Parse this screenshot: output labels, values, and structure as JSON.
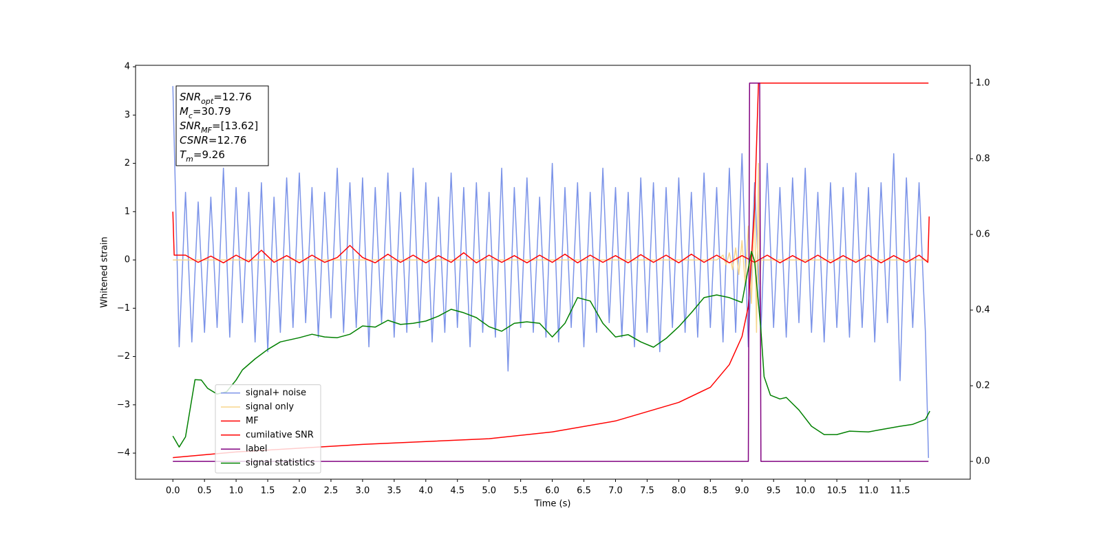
{
  "chart_data": {
    "type": "line",
    "xlabel": "Time (s)",
    "ylabel": "Whitened strain",
    "xlim": [
      -0.59,
      12.61
    ],
    "ylim": [
      -4.54,
      4.03
    ],
    "y2lim": [
      -0.047,
      1.047
    ],
    "xticks": [
      {
        "value": 0,
        "label": "0.0"
      },
      0.5,
      {
        "value": 1,
        "label": "1.0"
      },
      1.5,
      {
        "value": 2,
        "label": "2.0"
      },
      2.5,
      {
        "value": 3,
        "label": "3.0"
      },
      3.5,
      {
        "value": 4,
        "label": "4.0"
      },
      4.5,
      {
        "value": 5,
        "label": "5.0"
      },
      5.5,
      {
        "value": 6,
        "label": "6.0"
      },
      6.5,
      {
        "value": 7,
        "label": "7.0"
      },
      7.5,
      {
        "value": 8,
        "label": "8.0"
      },
      8.5,
      {
        "value": 9,
        "label": "9.0"
      },
      9.5,
      {
        "value": 10,
        "label": "10.0"
      },
      10.5,
      {
        "value": 11,
        "label": "11.0"
      },
      11.5
    ],
    "yticks": [
      {
        "value": -4,
        "label": "−4"
      },
      {
        "value": -3,
        "label": "−3"
      },
      {
        "value": -2,
        "label": "−2"
      },
      {
        "value": -1,
        "label": "−1"
      },
      0,
      1,
      2,
      3,
      4
    ],
    "y2ticks": [
      {
        "value": 0,
        "label": "0.0"
      },
      0.2,
      0.4,
      0.6,
      0.8,
      {
        "value": 1,
        "label": "1.0"
      }
    ],
    "legend": "lower left",
    "annotation": [
      {
        "main": "SNR",
        "sub": "opt",
        "rest": "=12.76"
      },
      {
        "main": "M",
        "sub": "c",
        "rest": "=30.79"
      },
      {
        "main": "SNR",
        "sub": "MF",
        "rest": "=[13.62]"
      },
      {
        "main": "CSNR",
        "rest": "=12.76"
      },
      {
        "main": "T",
        "sub": "m",
        "rest": "=9.26"
      }
    ],
    "series": [
      {
        "name": "signal+ noise",
        "color": "#7b93e8",
        "x": [
          0,
          0.1,
          0.2,
          0.3,
          0.4,
          0.5,
          0.6,
          0.7,
          0.8,
          0.9,
          1,
          1.1,
          1.2,
          1.3,
          1.4,
          1.5,
          1.6,
          1.7,
          1.8,
          1.9,
          2,
          2.1,
          2.2,
          2.3,
          2.4,
          2.5,
          2.6,
          2.7,
          2.8,
          2.9,
          3,
          3.1,
          3.2,
          3.3,
          3.4,
          3.5,
          3.6,
          3.7,
          3.8,
          3.9,
          4,
          4.1,
          4.2,
          4.3,
          4.4,
          4.5,
          4.6,
          4.7,
          4.8,
          4.9,
          5,
          5.1,
          5.2,
          5.3,
          5.4,
          5.5,
          5.6,
          5.7,
          5.8,
          5.9,
          6,
          6.1,
          6.2,
          6.3,
          6.4,
          6.5,
          6.6,
          6.7,
          6.8,
          6.9,
          7,
          7.1,
          7.2,
          7.3,
          7.4,
          7.5,
          7.6,
          7.7,
          7.8,
          7.9,
          8,
          8.1,
          8.2,
          8.3,
          8.4,
          8.5,
          8.6,
          8.7,
          8.8,
          8.9,
          9,
          9.1,
          9.2,
          9.3,
          9.4,
          9.5,
          9.6,
          9.7,
          9.8,
          9.9,
          10,
          10.1,
          10.2,
          10.3,
          10.4,
          10.5,
          10.6,
          10.7,
          10.8,
          10.9,
          11,
          11.1,
          11.2,
          11.3,
          11.4,
          11.5,
          11.6,
          11.7,
          11.8,
          11.9,
          11.95
        ],
        "values": [
          3.6,
          -1.8,
          1.4,
          -1.7,
          1.2,
          -1.5,
          1.3,
          -1.4,
          1.9,
          -1.6,
          1.5,
          -1.3,
          1.4,
          -1.7,
          1.6,
          -1.9,
          1.3,
          -1.5,
          1.7,
          -1.4,
          1.8,
          -1.3,
          1.5,
          -1.6,
          1.4,
          -1.2,
          1.9,
          -1.5,
          1.6,
          -1.4,
          1.7,
          -1.8,
          1.5,
          -1.3,
          1.8,
          -1.6,
          1.4,
          -1.5,
          1.9,
          -1.4,
          1.6,
          -1.7,
          1.3,
          -1.5,
          1.8,
          -1.4,
          1.5,
          -1.8,
          1.6,
          -1.5,
          1.4,
          -1.6,
          1.9,
          -2.3,
          1.5,
          -1.4,
          1.7,
          -1.5,
          1.3,
          -1.6,
          2.0,
          -1.7,
          1.5,
          -1.4,
          1.6,
          -1.8,
          1.4,
          -1.5,
          1.9,
          -1.3,
          1.5,
          -1.6,
          1.4,
          -1.8,
          1.7,
          -1.5,
          1.6,
          -1.9,
          1.5,
          -1.4,
          1.7,
          -1.5,
          1.4,
          -1.6,
          1.8,
          -1.4,
          1.5,
          -1.7,
          1.9,
          -1.5,
          2.2,
          -1.8,
          1.6,
          -1.5,
          2.0,
          -1.4,
          1.5,
          -1.6,
          1.7,
          -1.3,
          1.9,
          -1.5,
          1.4,
          -1.7,
          1.6,
          -1.4,
          1.5,
          -1.6,
          1.8,
          -1.4,
          1.5,
          -1.7,
          1.6,
          -1.3,
          2.2,
          -2.5,
          1.7,
          -1.4,
          1.6,
          -1.5,
          -4.1
        ]
      },
      {
        "name": "signal only",
        "color": "#f7d58a",
        "x": [
          0,
          8.6,
          8.7,
          8.75,
          8.8,
          8.85,
          8.9,
          8.95,
          9,
          9.05,
          9.1,
          9.15,
          9.2,
          9.23,
          9.26,
          9.28,
          9.3,
          11.95
        ],
        "values": [
          0,
          0,
          0.1,
          -0.1,
          0.15,
          -0.2,
          0.25,
          -0.3,
          0.4,
          -0.5,
          0.7,
          -0.9,
          1.2,
          -1.5,
          2.0,
          -0.5,
          0,
          0
        ]
      },
      {
        "name": "MF",
        "color": "#ff0000",
        "x": [
          0,
          0.02,
          0.2,
          0.4,
          0.6,
          0.8,
          1,
          1.2,
          1.4,
          1.6,
          1.8,
          2,
          2.2,
          2.4,
          2.6,
          2.8,
          3,
          3.2,
          3.4,
          3.6,
          3.8,
          4,
          4.2,
          4.4,
          4.6,
          4.8,
          5,
          5.2,
          5.4,
          5.6,
          5.8,
          6,
          6.2,
          6.4,
          6.6,
          6.8,
          7,
          7.2,
          7.4,
          7.6,
          7.8,
          8,
          8.2,
          8.4,
          8.6,
          8.8,
          9,
          9.2,
          9.4,
          9.6,
          9.8,
          10,
          10.2,
          10.4,
          10.6,
          10.8,
          11,
          11.2,
          11.4,
          11.6,
          11.8,
          11.94,
          11.96
        ],
        "values": [
          1.0,
          0.1,
          0.1,
          -0.05,
          0.08,
          -0.06,
          0.1,
          -0.04,
          0.2,
          -0.05,
          0.09,
          -0.06,
          0.1,
          -0.05,
          0.05,
          0.3,
          0.05,
          -0.06,
          0.12,
          -0.05,
          0.1,
          -0.06,
          0.09,
          -0.05,
          0.15,
          -0.06,
          0.1,
          -0.05,
          0.09,
          -0.06,
          0.1,
          -0.05,
          0.12,
          -0.06,
          0.1,
          -0.05,
          0.09,
          -0.06,
          0.11,
          -0.05,
          0.1,
          -0.06,
          0.12,
          -0.05,
          0.1,
          -0.06,
          0.09,
          -0.05,
          0.1,
          -0.06,
          0.09,
          -0.05,
          0.1,
          -0.06,
          0.09,
          -0.05,
          0.1,
          -0.06,
          0.09,
          -0.05,
          0.1,
          -0.05,
          0.9
        ]
      },
      {
        "name": "cumilative SNR",
        "color": "#ff0000",
        "axis": "y2",
        "x": [
          0,
          1,
          3,
          5,
          6,
          7,
          8,
          8.5,
          8.8,
          9,
          9.1,
          9.2,
          9.26,
          11.95
        ],
        "values": [
          0.01,
          0.025,
          0.045,
          0.06,
          0.078,
          0.107,
          0.156,
          0.196,
          0.256,
          0.33,
          0.41,
          0.67,
          1.0,
          1.0
        ]
      },
      {
        "name": "label",
        "color": "#800080",
        "axis": "y2",
        "x": [
          0,
          9.1,
          9.12,
          9.28,
          9.3,
          11.95
        ],
        "values": [
          0,
          0,
          1,
          1,
          0,
          0
        ]
      },
      {
        "name": "signal statistics",
        "color": "#008000",
        "axis": "y2",
        "x": [
          0,
          0.1,
          0.2,
          0.35,
          0.45,
          0.55,
          0.7,
          0.85,
          1,
          1.1,
          1.3,
          1.5,
          1.7,
          2,
          2.2,
          2.4,
          2.6,
          2.8,
          3,
          3.2,
          3.4,
          3.6,
          3.8,
          4,
          4.2,
          4.4,
          4.6,
          4.8,
          5,
          5.2,
          5.4,
          5.6,
          5.8,
          6,
          6.2,
          6.4,
          6.6,
          6.8,
          7,
          7.2,
          7.4,
          7.6,
          7.8,
          8,
          8.2,
          8.4,
          8.6,
          8.8,
          9,
          9.15,
          9.2,
          9.3,
          9.35,
          9.45,
          9.6,
          9.7,
          9.9,
          10.1,
          10.3,
          10.5,
          10.7,
          11,
          11.2,
          11.5,
          11.7,
          11.9,
          11.97
        ],
        "values": [
          0.067,
          0.038,
          0.065,
          0.216,
          0.215,
          0.193,
          0.178,
          0.184,
          0.215,
          0.242,
          0.271,
          0.296,
          0.316,
          0.327,
          0.336,
          0.329,
          0.327,
          0.336,
          0.358,
          0.355,
          0.373,
          0.362,
          0.365,
          0.371,
          0.384,
          0.402,
          0.393,
          0.38,
          0.356,
          0.344,
          0.365,
          0.369,
          0.365,
          0.329,
          0.365,
          0.433,
          0.424,
          0.365,
          0.329,
          0.335,
          0.316,
          0.302,
          0.325,
          0.356,
          0.393,
          0.433,
          0.44,
          0.433,
          0.42,
          0.555,
          0.529,
          0.347,
          0.224,
          0.175,
          0.165,
          0.169,
          0.136,
          0.093,
          0.071,
          0.071,
          0.08,
          0.078,
          0.084,
          0.093,
          0.098,
          0.111,
          0.133
        ]
      }
    ]
  }
}
